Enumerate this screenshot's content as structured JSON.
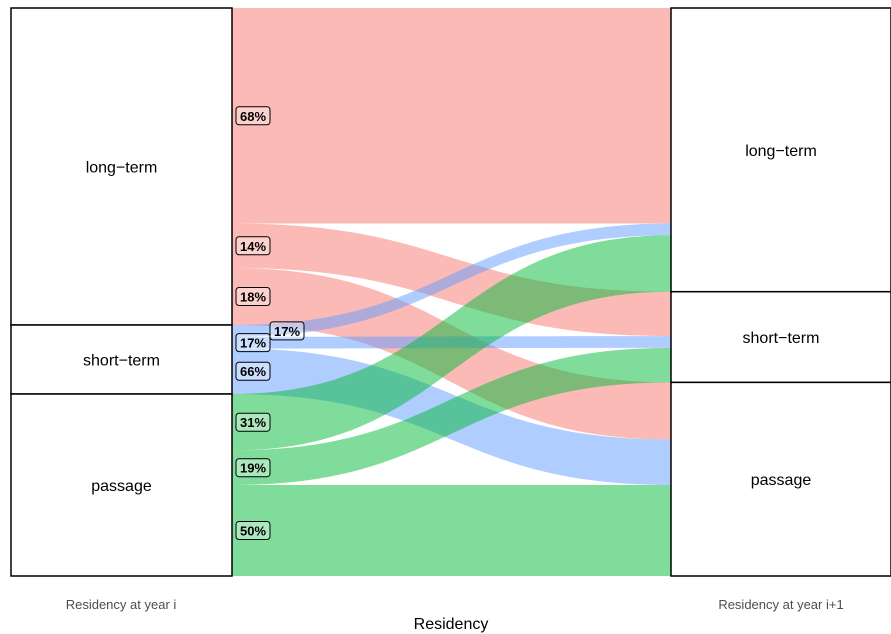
{
  "chart_data": {
    "type": "alluvial",
    "xlabel": "Residency",
    "axes": [
      "Residency at year i",
      "Residency at year i+1"
    ],
    "strata": [
      "long−term",
      "short−term",
      "passage"
    ],
    "colors": {
      "long−term": "#f8766d",
      "short−term": "#619cff",
      "passage": "#00ba38"
    },
    "flows": [
      {
        "from": "long−term",
        "to": "long−term",
        "value": 68,
        "label": "68%"
      },
      {
        "from": "long−term",
        "to": "short−term",
        "value": 14,
        "label": "14%"
      },
      {
        "from": "long−term",
        "to": "passage",
        "value": 18,
        "label": "18%"
      },
      {
        "from": "short−term",
        "to": "long−term",
        "value": 17,
        "label": "17%"
      },
      {
        "from": "short−term",
        "to": "short−term",
        "value": 17,
        "label": "17%"
      },
      {
        "from": "short−term",
        "to": "passage",
        "value": 66,
        "label": "66%"
      },
      {
        "from": "passage",
        "to": "long−term",
        "value": 31,
        "label": "31%"
      },
      {
        "from": "passage",
        "to": "short−term",
        "value": 19,
        "label": "19%"
      },
      {
        "from": "passage",
        "to": "passage",
        "value": 50,
        "label": "50%"
      }
    ]
  }
}
